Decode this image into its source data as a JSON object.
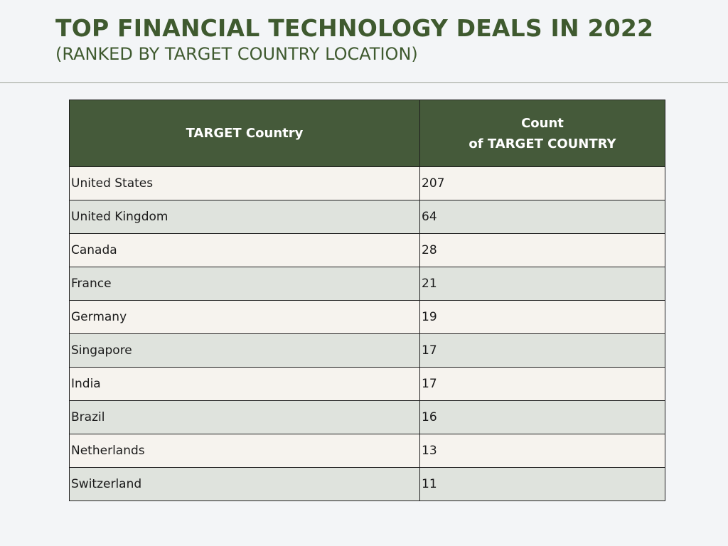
{
  "title": "TOP FINANCIAL TECHNOLOGY DEALS IN 2022",
  "subtitle": "(RANKED BY TARGET COUNTRY LOCATION)",
  "table": {
    "header": {
      "col1": "TARGET Country",
      "col2_line1": "Count",
      "col2_line2": "of TARGET COUNTRY"
    },
    "rows": [
      {
        "country": "United States",
        "count": "207"
      },
      {
        "country": "United Kingdom",
        "count": "64"
      },
      {
        "country": "Canada",
        "count": "28"
      },
      {
        "country": "France",
        "count": "21"
      },
      {
        "country": "Germany",
        "count": "19"
      },
      {
        "country": "Singapore",
        "count": "17"
      },
      {
        "country": "India",
        "count": "17"
      },
      {
        "country": "Brazil",
        "count": "16"
      },
      {
        "country": "Netherlands",
        "count": "13"
      },
      {
        "country": "Switzerland",
        "count": "11"
      }
    ]
  },
  "colors": {
    "title": "#3f5a2f",
    "header_bg": "#455a3a",
    "row_light": "#f6f3ee",
    "row_dark": "#dfe3dd",
    "page_bg": "#f3f5f7"
  }
}
